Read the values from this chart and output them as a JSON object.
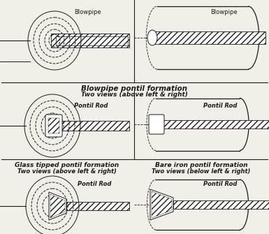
{
  "bg_color": "#f2efe9",
  "lc": "#1a1a1a",
  "title1": "Blowpipe pontil formation",
  "title1b": "Two views (above left & right)",
  "title2": "Glass tipped pontil formation",
  "title2b": "Two views (above left & right)",
  "title3": "Bare iron pontil formation",
  "title3b": "Two views (below left & right)",
  "label_blowpipe": "Blowpipe",
  "label_pontil": "Pontil Rod"
}
